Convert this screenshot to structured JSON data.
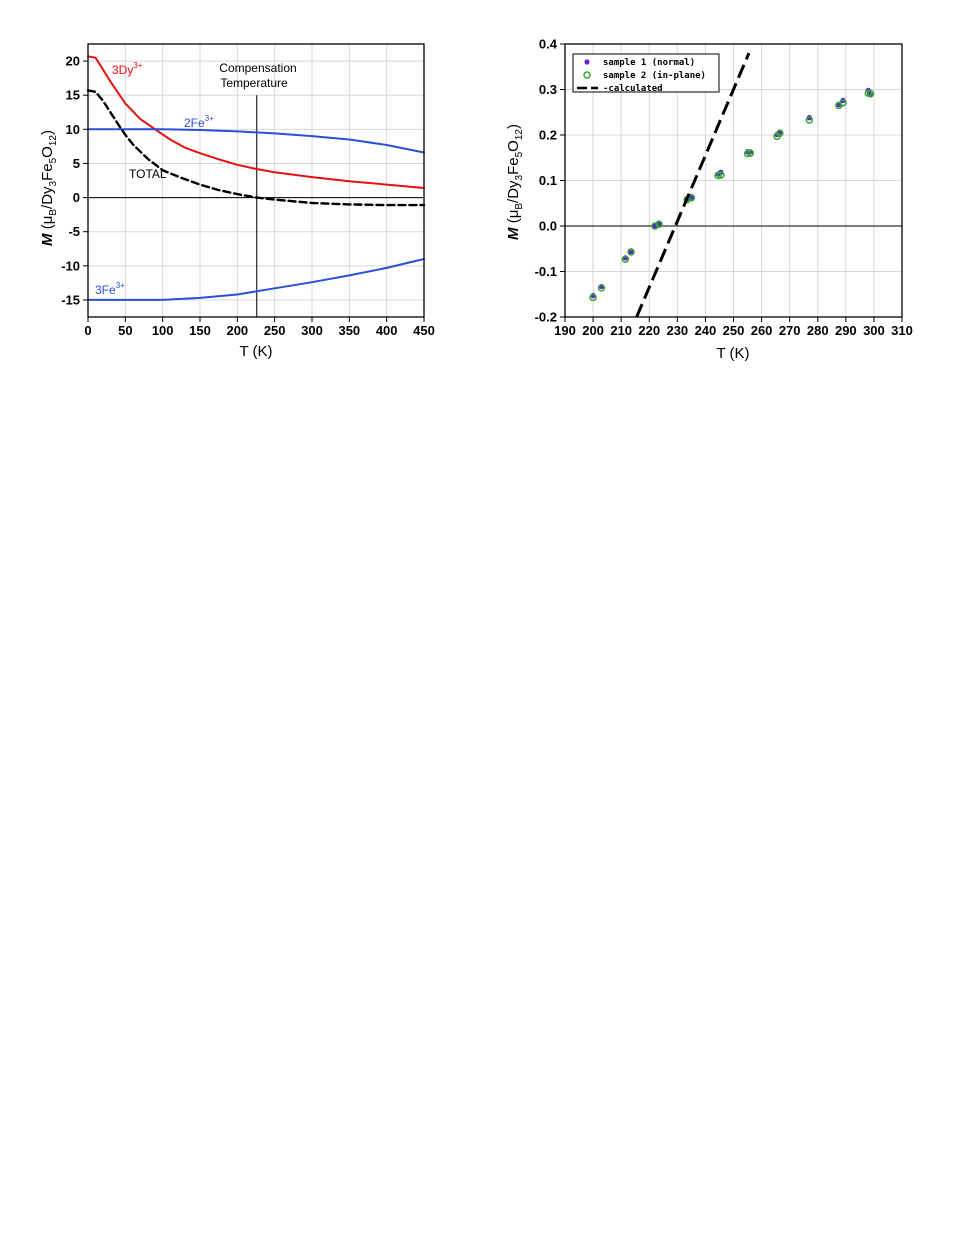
{
  "chart_data": [
    {
      "type": "line",
      "xlabel": "T (K)",
      "ylabel": {
        "main": "M",
        "paren_open": " (μ",
        "sub_b": "B",
        "slash": "/Dy",
        "sub3": "3",
        "fe": "Fe",
        "sub5": "5",
        "o": "O",
        "sub12": "12",
        "paren_close": ")"
      },
      "xlim": [
        0,
        450
      ],
      "ylim": [
        -17.5,
        22.5
      ],
      "xticks": [
        0,
        50,
        100,
        150,
        200,
        250,
        300,
        350,
        400,
        450
      ],
      "yticks": [
        20,
        15,
        10,
        5,
        0,
        -5,
        -10,
        -15
      ],
      "grid": true,
      "vline_x": 226,
      "annotation": {
        "line1": "Compensation",
        "line2": "Temperature"
      },
      "series": [
        {
          "name": "3Dy",
          "sup": "3+",
          "color": "#e81010",
          "dash": false,
          "x": [
            0,
            10,
            20,
            30,
            50,
            70,
            90,
            110,
            130,
            150,
            175,
            200,
            225,
            250,
            300,
            350,
            400,
            450
          ],
          "y": [
            20.7,
            20.5,
            18.8,
            17.0,
            13.8,
            11.5,
            10.0,
            8.5,
            7.3,
            6.5,
            5.6,
            4.8,
            4.2,
            3.7,
            3.0,
            2.4,
            1.9,
            1.4
          ]
        },
        {
          "name": "2Fe",
          "sup": "3+",
          "color": "#2a4fd8",
          "dash": false,
          "x": [
            0,
            50,
            100,
            150,
            200,
            250,
            300,
            350,
            400,
            450
          ],
          "y": [
            10.0,
            10.0,
            10.0,
            9.9,
            9.7,
            9.4,
            9.0,
            8.5,
            7.7,
            6.6
          ]
        },
        {
          "name": "3Fe",
          "sup": "3+",
          "color": "#2a4fd8",
          "dash": false,
          "x": [
            0,
            50,
            100,
            150,
            200,
            250,
            300,
            350,
            400,
            450
          ],
          "y": [
            -15.0,
            -15.0,
            -15.0,
            -14.7,
            -14.2,
            -13.3,
            -12.4,
            -11.4,
            -10.3,
            -9.0
          ]
        },
        {
          "name": "TOTAL",
          "sup": "",
          "color": "#000000",
          "dash": true,
          "x": [
            0,
            10,
            20,
            30,
            40,
            50,
            60,
            80,
            100,
            125,
            150,
            175,
            200,
            226,
            250,
            300,
            350,
            400,
            450
          ],
          "y": [
            15.7,
            15.5,
            14.2,
            12.5,
            10.8,
            9.2,
            7.8,
            5.7,
            4.0,
            2.9,
            1.9,
            1.1,
            0.5,
            0.0,
            -0.3,
            -0.8,
            -1.0,
            -1.1,
            -1.1
          ]
        }
      ]
    },
    {
      "type": "scatter",
      "xlabel": "T (K)",
      "ylabel": {
        "main": "M",
        "paren_open": " (μ",
        "sub_b": "B",
        "slash": "/Dy",
        "sub3": "3",
        "fe": "Fe",
        "sub5": "5",
        "o": "O",
        "sub12": "12",
        "paren_close": ")"
      },
      "xlim": [
        190,
        310
      ],
      "ylim": [
        -0.2,
        0.4
      ],
      "xticks": [
        190,
        200,
        210,
        220,
        230,
        240,
        250,
        260,
        270,
        280,
        290,
        300,
        310
      ],
      "yticks": [
        "0.4",
        "0.3",
        "0.2",
        "0.1",
        "0.0",
        "-0.1",
        "-0.2"
      ],
      "grid": true,
      "legend_position": "top-left",
      "series": [
        {
          "name": "sample 1 (normal)",
          "marker": "filled-circle",
          "color": "#6a1fd8",
          "x": [
            200.0,
            203.0,
            211.5,
            213.5,
            222.0,
            223.5,
            233.5,
            235.0,
            244.5,
            245.5,
            255.0,
            256.0,
            265.5,
            266.5,
            277.0,
            287.5,
            289.0,
            298.0,
            298.8
          ],
          "y": [
            -0.153,
            -0.133,
            -0.07,
            -0.058,
            0.0,
            0.005,
            0.06,
            0.063,
            0.114,
            0.118,
            0.163,
            0.163,
            0.201,
            0.206,
            0.238,
            0.267,
            0.276,
            0.298,
            0.288
          ]
        },
        {
          "name": "sample 2 (in-plane)",
          "marker": "open-circle",
          "color": "#2ea82e",
          "x": [
            200.0,
            203.0,
            211.5,
            213.5,
            222.0,
            223.5,
            233.5,
            235.0,
            244.5,
            245.5,
            255.0,
            256.0,
            265.5,
            266.5,
            277.0,
            287.5,
            289.0,
            298.0,
            298.8
          ],
          "y": [
            -0.157,
            -0.136,
            -0.073,
            -0.057,
            0.0,
            0.004,
            0.058,
            0.062,
            0.111,
            0.112,
            0.159,
            0.16,
            0.197,
            0.204,
            0.233,
            0.265,
            0.271,
            0.292,
            0.291
          ]
        },
        {
          "name": "-calculated",
          "marker": "dashed-line",
          "color": "#000000",
          "x": [
            215.5,
            255.5
          ],
          "y": [
            -0.2,
            0.38
          ]
        }
      ]
    }
  ]
}
